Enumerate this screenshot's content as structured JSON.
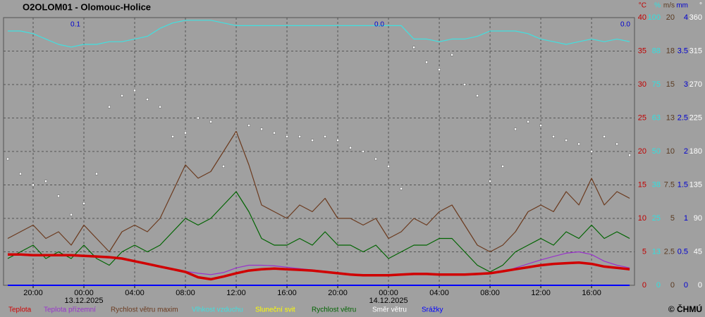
{
  "chart_data": {
    "type": "line",
    "title": "O2OLOM01 - Olomouc-Holice",
    "footer": "© ČHMÚ",
    "x": [
      "2025-12-12T18:00",
      "2025-12-12T19:00",
      "2025-12-12T20:00",
      "2025-12-12T21:00",
      "2025-12-12T22:00",
      "2025-12-12T23:00",
      "2025-12-13T00:00",
      "2025-12-13T01:00",
      "2025-12-13T02:00",
      "2025-12-13T03:00",
      "2025-12-13T04:00",
      "2025-12-13T05:00",
      "2025-12-13T06:00",
      "2025-12-13T07:00",
      "2025-12-13T08:00",
      "2025-12-13T09:00",
      "2025-12-13T10:00",
      "2025-12-13T11:00",
      "2025-12-13T12:00",
      "2025-12-13T13:00",
      "2025-12-13T14:00",
      "2025-12-13T15:00",
      "2025-12-13T16:00",
      "2025-12-13T17:00",
      "2025-12-13T18:00",
      "2025-12-13T19:00",
      "2025-12-13T20:00",
      "2025-12-13T21:00",
      "2025-12-13T22:00",
      "2025-12-13T23:00",
      "2025-12-14T00:00",
      "2025-12-14T01:00",
      "2025-12-14T02:00",
      "2025-12-14T03:00",
      "2025-12-14T04:00",
      "2025-12-14T05:00",
      "2025-12-14T06:00",
      "2025-12-14T07:00",
      "2025-12-14T08:00",
      "2025-12-14T09:00",
      "2025-12-14T10:00",
      "2025-12-14T11:00",
      "2025-12-14T12:00",
      "2025-12-14T13:00",
      "2025-12-14T14:00",
      "2025-12-14T15:00",
      "2025-12-14T16:00",
      "2025-12-14T17:00",
      "2025-12-14T18:00",
      "2025-12-14T19:00"
    ],
    "xlim": [
      "2025-12-12T17:40",
      "2025-12-14T19:23"
    ],
    "xticks": [
      {
        "value": "2025-12-12T20:00",
        "label": "20:00"
      },
      {
        "value": "2025-12-13T00:00",
        "label": "00:00"
      },
      {
        "value": "2025-12-13T04:00",
        "label": "04:00"
      },
      {
        "value": "2025-12-13T08:00",
        "label": "08:00"
      },
      {
        "value": "2025-12-13T12:00",
        "label": "12:00"
      },
      {
        "value": "2025-12-13T16:00",
        "label": "16:00"
      },
      {
        "value": "2025-12-13T20:00",
        "label": "20:00"
      },
      {
        "value": "2025-12-14T00:00",
        "label": "00:00"
      },
      {
        "value": "2025-12-14T04:00",
        "label": "04:00"
      },
      {
        "value": "2025-12-14T08:00",
        "label": "08:00"
      },
      {
        "value": "2025-12-14T12:00",
        "label": "12:00"
      },
      {
        "value": "2025-12-14T16:00",
        "label": "16:00"
      }
    ],
    "date_labels": [
      {
        "value": "2025-12-13T00:00",
        "label": "13.12.2025"
      },
      {
        "value": "2025-12-14T00:00",
        "label": "14.12.2025"
      }
    ],
    "grid": true,
    "axes": [
      {
        "unit": "°C",
        "color": "#c00000",
        "lim": [
          0,
          40
        ],
        "ticks": [
          0,
          5,
          10,
          15,
          20,
          25,
          30,
          35,
          40
        ]
      },
      {
        "unit": "%",
        "color": "#30e0e0",
        "lim": [
          0,
          100
        ],
        "ticks": [
          0,
          {
            "value": 12.5,
            "label": "13"
          },
          25,
          {
            "value": 37.5,
            "label": "38"
          },
          50,
          {
            "value": 62.5,
            "label": "63"
          },
          75,
          {
            "value": 87.5,
            "label": "88"
          },
          100
        ]
      },
      {
        "unit": "m/s",
        "color": "#5a3a20",
        "lim": [
          0,
          20
        ],
        "ticks": [
          0,
          2.5,
          5,
          7.5,
          10,
          {
            "value": 12.5,
            "label": "13"
          },
          15,
          {
            "value": 17.5,
            "label": "18"
          },
          20
        ]
      },
      {
        "unit": "mm",
        "color": "#0000d0",
        "lim": [
          0,
          4
        ],
        "ticks": [
          0,
          0.5,
          1,
          1.5,
          2,
          2.5,
          3,
          3.5,
          4
        ]
      },
      {
        "unit": "°",
        "color": "#ffffff",
        "lim": [
          0,
          360
        ],
        "ticks": [
          0,
          45,
          90,
          135,
          180,
          225,
          270,
          315,
          360
        ]
      }
    ],
    "annotations": [
      "0.1",
      "0.0",
      "0.0"
    ],
    "series": [
      {
        "name": "Teplota",
        "color": "#d00000",
        "unit": "°C",
        "values": [
          4.6,
          4.6,
          4.5,
          4.5,
          4.5,
          4.5,
          4.4,
          4.3,
          4.2,
          4.0,
          3.6,
          3.2,
          2.8,
          2.4,
          2.0,
          1.2,
          0.9,
          1.3,
          1.8,
          2.2,
          2.4,
          2.5,
          2.4,
          2.3,
          2.2,
          2.0,
          1.8,
          1.6,
          1.5,
          1.5,
          1.5,
          1.6,
          1.7,
          1.7,
          1.6,
          1.6,
          1.6,
          1.7,
          1.8,
          2.1,
          2.4,
          2.7,
          3.0,
          3.2,
          3.3,
          3.4,
          3.2,
          2.8,
          2.6,
          2.4
        ]
      },
      {
        "name": "Teplota přízemní",
        "color": "#9932cc",
        "unit": "°C",
        "values": [
          4.5,
          4.5,
          4.4,
          4.4,
          4.4,
          4.4,
          4.3,
          4.2,
          4.1,
          3.9,
          3.5,
          3.1,
          2.7,
          2.3,
          2.1,
          1.8,
          1.6,
          1.9,
          2.6,
          3.0,
          3.0,
          2.9,
          2.7,
          2.5,
          2.3,
          2.1,
          1.9,
          1.7,
          1.6,
          1.6,
          1.6,
          1.7,
          1.8,
          1.8,
          1.7,
          1.7,
          1.6,
          1.6,
          1.7,
          2.0,
          2.6,
          3.2,
          3.8,
          4.3,
          4.8,
          5.0,
          4.6,
          3.6,
          3.0,
          2.6
        ]
      },
      {
        "name": "Rychlost větru maxim",
        "color": "#6b3a1e",
        "unit": "m/s",
        "values": [
          3.5,
          4,
          4.5,
          3.5,
          4,
          3,
          4.5,
          3.5,
          2.5,
          4,
          4.5,
          4,
          5,
          7,
          9,
          8,
          8.5,
          10,
          11.5,
          9,
          6,
          5.5,
          5,
          6,
          5.5,
          6.5,
          5,
          5,
          4.5,
          5,
          3.5,
          4,
          5,
          4.5,
          5.5,
          6,
          4.5,
          3,
          2.5,
          3,
          4,
          5.5,
          6,
          5.5,
          7,
          6,
          8,
          6,
          7,
          6.5
        ]
      },
      {
        "name": "Vlhkost vzduchu",
        "color": "#40e0e0",
        "unit": "%",
        "values": [
          95,
          95,
          94,
          92,
          90,
          89,
          90,
          90,
          91,
          91,
          92,
          93,
          96,
          98,
          99,
          99,
          99,
          98,
          97,
          97,
          97,
          97,
          97,
          97,
          97,
          97,
          97,
          97,
          97,
          97,
          97,
          97,
          92,
          92,
          91,
          92,
          92,
          93,
          95,
          95,
          95,
          94,
          92,
          91,
          90,
          91,
          92,
          91,
          92,
          91
        ]
      },
      {
        "name": "Sluneční svit",
        "color": "#ffff00",
        "unit": "%",
        "values": [
          null,
          null,
          null,
          null,
          null,
          null,
          null,
          null,
          null,
          null,
          null,
          null,
          null,
          null,
          null,
          null,
          null,
          null,
          null,
          null,
          null,
          null,
          null,
          null,
          null,
          null,
          null,
          null,
          null,
          null,
          null,
          null,
          null,
          null,
          null,
          null,
          null,
          null,
          null,
          null,
          null,
          null,
          null,
          null,
          null,
          null,
          null,
          null,
          null,
          null
        ]
      },
      {
        "name": "Rychlost větru",
        "color": "#006400",
        "unit": "m/s",
        "values": [
          2,
          2.5,
          3,
          2,
          2.5,
          2,
          3,
          2,
          1.5,
          2.5,
          3,
          2.5,
          3,
          4,
          5,
          4.5,
          5,
          6,
          7,
          5.5,
          3.5,
          3,
          3,
          3.5,
          3,
          4,
          3,
          3,
          2.5,
          3,
          2,
          2.5,
          3,
          3,
          3.5,
          3.5,
          2.5,
          1.5,
          1,
          1.5,
          2.5,
          3,
          3.5,
          3,
          4,
          3.5,
          4.5,
          3.5,
          4,
          3.5
        ]
      },
      {
        "name": "Směr větru",
        "color": "#ffffff",
        "unit": "°",
        "marker": "square",
        "values": [
          170,
          150,
          135,
          140,
          120,
          95,
          110,
          150,
          240,
          255,
          262,
          250,
          240,
          200,
          205,
          225,
          220,
          160,
          205,
          215,
          210,
          205,
          200,
          200,
          195,
          200,
          195,
          185,
          180,
          170,
          160,
          130,
          320,
          300,
          290,
          310,
          270,
          255,
          140,
          160,
          210,
          220,
          215,
          200,
          195,
          190,
          180,
          200,
          190,
          175
        ]
      },
      {
        "name": "Srážky",
        "color": "#0000ff",
        "unit": "mm",
        "values": [
          0,
          0,
          0,
          0,
          0,
          0,
          0,
          0,
          0,
          0,
          0,
          0,
          0,
          0,
          0,
          0,
          0,
          0,
          0,
          0,
          0,
          0,
          0,
          0,
          0,
          0,
          0,
          0,
          0,
          0,
          0,
          0,
          0,
          0,
          0,
          0,
          0,
          0,
          0,
          0,
          0,
          0,
          0,
          0,
          0,
          0,
          0,
          0,
          0,
          0
        ]
      }
    ]
  }
}
